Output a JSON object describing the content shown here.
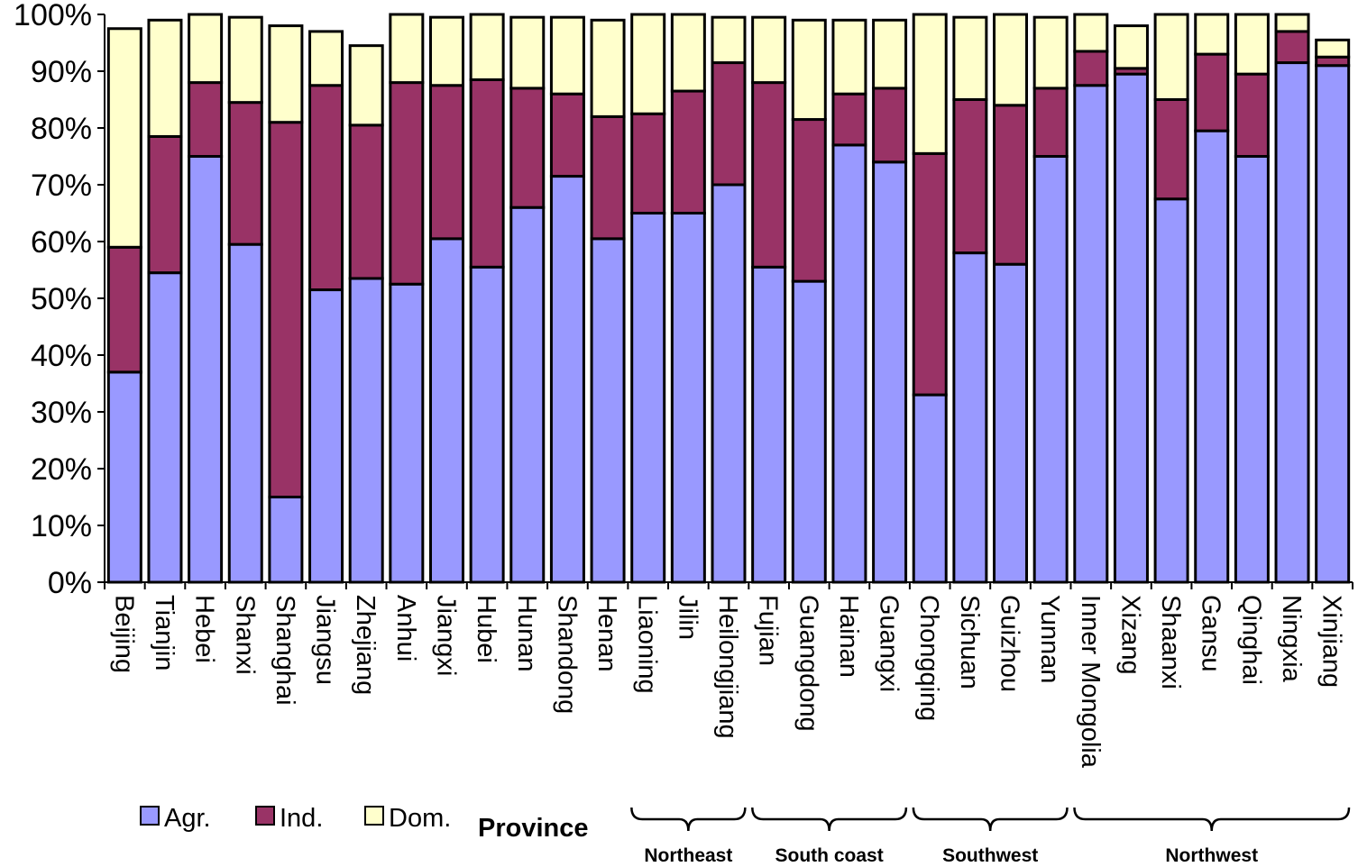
{
  "chart_data": {
    "type": "bar",
    "stacked": true,
    "xlabel": "Province",
    "ylabel": "",
    "ylim": [
      0,
      100
    ],
    "yticks": [
      "0%",
      "10%",
      "20%",
      "30%",
      "40%",
      "50%",
      "60%",
      "70%",
      "80%",
      "90%",
      "100%"
    ],
    "categories": [
      "Beijing",
      "Tianjin",
      "Hebei",
      "Shanxi",
      "Shanghai",
      "Jiangsu",
      "Zhejiang",
      "Anhui",
      "Jiangxi",
      "Hubei",
      "Hunan",
      "Shandong",
      "Henan",
      "Liaoning",
      "Jilin",
      "Heilongjiang",
      "Fujian",
      "Guangdong",
      "Hainan",
      "Guangxi",
      "Chongqing",
      "Sichuan",
      "Guizhou",
      "Yunnan",
      "Inner Mongolia",
      "Xizang",
      "Shaanxi",
      "Gansu",
      "Qinghai",
      "Ningxia",
      "Xinjiang"
    ],
    "series": [
      {
        "name": "Agr.",
        "color": "#9999ff",
        "values": [
          37,
          54.5,
          75,
          59.5,
          15,
          51.5,
          53.5,
          52.5,
          60.5,
          55.5,
          66,
          71.5,
          60.5,
          65,
          65,
          70,
          55.5,
          53,
          77,
          74,
          33,
          58,
          56,
          75,
          87.5,
          89.5,
          67.5,
          79.5,
          75,
          91.5,
          91
        ]
      },
      {
        "name": "Ind.",
        "color": "#993366",
        "values": [
          22,
          24,
          13,
          25,
          66,
          36,
          27,
          35.5,
          27,
          33,
          21,
          14.5,
          21.5,
          17.5,
          21.5,
          21.5,
          32.5,
          28.5,
          9,
          13,
          42.5,
          27,
          28,
          12,
          6,
          1,
          17.5,
          13.5,
          14.5,
          5.5,
          1.5
        ]
      },
      {
        "name": "Dom.",
        "color": "#ffffcc",
        "values": [
          38.5,
          20.5,
          12,
          15,
          17,
          9.5,
          14,
          12,
          12,
          11.5,
          12.5,
          13.5,
          17,
          17.5,
          13.5,
          8,
          11.5,
          17.5,
          13,
          12,
          24.5,
          14.5,
          16,
          12.5,
          6.5,
          7.5,
          15,
          7,
          10.5,
          3,
          3
        ]
      }
    ],
    "legend": {
      "position": "bottom-left",
      "entries": [
        "Agr.",
        "Ind.",
        "Dom."
      ]
    },
    "groups": [
      {
        "label": "Northeast",
        "from": "Liaoning",
        "to": "Heilongjiang"
      },
      {
        "label": "South coast",
        "from": "Fujian",
        "to": "Guangxi"
      },
      {
        "label": "Southwest",
        "from": "Chongqing",
        "to": "Yunnan"
      },
      {
        "label": "Northwest",
        "from": "Inner Mongolia",
        "to": "Xinjiang"
      }
    ]
  }
}
